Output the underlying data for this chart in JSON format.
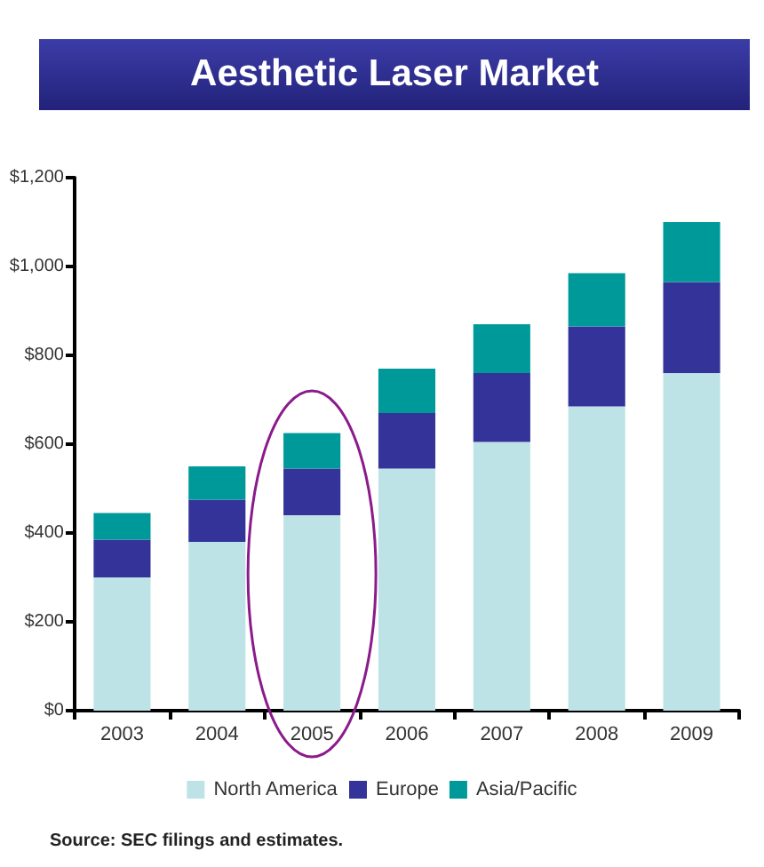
{
  "chart_data": {
    "type": "bar",
    "title": "Aesthetic Laser Market",
    "categories": [
      "2003",
      "2004",
      "2005",
      "2006",
      "2007",
      "2008",
      "2009"
    ],
    "stacked": true,
    "series": [
      {
        "name": "North America",
        "color": "#bee3e6",
        "values": [
          300,
          380,
          440,
          545,
          605,
          685,
          760
        ]
      },
      {
        "name": "Europe",
        "color": "#333399",
        "values": [
          85,
          95,
          105,
          125,
          155,
          180,
          205
        ]
      },
      {
        "name": "Asia/Pacific",
        "color": "#009999",
        "values": [
          60,
          75,
          80,
          100,
          110,
          120,
          135
        ]
      }
    ],
    "ylim": [
      0,
      1200
    ],
    "yticks": [
      {
        "value": 0,
        "label": "$0"
      },
      {
        "value": 200,
        "label": "$200"
      },
      {
        "value": 400,
        "label": "$400"
      },
      {
        "value": 600,
        "label": "$600"
      },
      {
        "value": 800,
        "label": "$800"
      },
      {
        "value": 1000,
        "label": "$1,000"
      },
      {
        "value": 1200,
        "label": "$1,200"
      }
    ],
    "grid": false,
    "legend": "bottom",
    "annotations": [
      "Source:  SEC filings and estimates."
    ]
  }
}
